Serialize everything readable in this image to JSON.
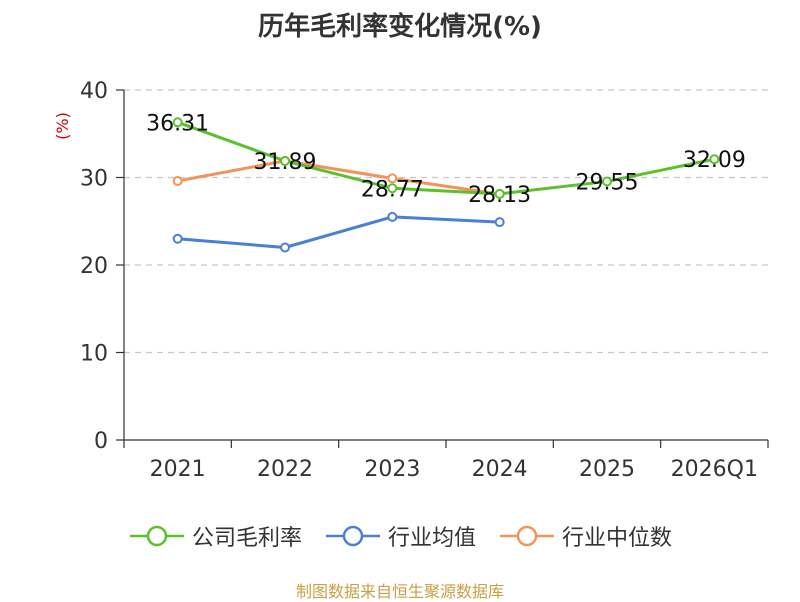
{
  "chart_data": {
    "type": "line",
    "title": "历年毛利率变化情况(%)",
    "ylabel": "(%)",
    "categories": [
      "2021",
      "2022",
      "2023",
      "2024",
      "2025",
      "2026Q1"
    ],
    "ylim": [
      0,
      40
    ],
    "yticks": [
      0,
      10,
      20,
      30,
      40
    ],
    "grid": true,
    "legend_position": "bottom",
    "series": [
      {
        "name": "公司毛利率",
        "color": "#5ac12d",
        "values": [
          36.31,
          31.89,
          28.77,
          28.13,
          29.55,
          32.09
        ],
        "labels": [
          "36.31",
          "31.89",
          "28.77",
          "28.13",
          "29.55",
          "32.09"
        ]
      },
      {
        "name": "行业均值",
        "color": "#4a7fd4",
        "values": [
          23.0,
          22.0,
          25.5,
          24.9,
          null,
          null
        ]
      },
      {
        "name": "行业中位数",
        "color": "#f0945a",
        "values": [
          29.6,
          31.9,
          29.9,
          28.1,
          null,
          null
        ]
      }
    ]
  },
  "source": "制图数据来自恒生聚源数据库"
}
